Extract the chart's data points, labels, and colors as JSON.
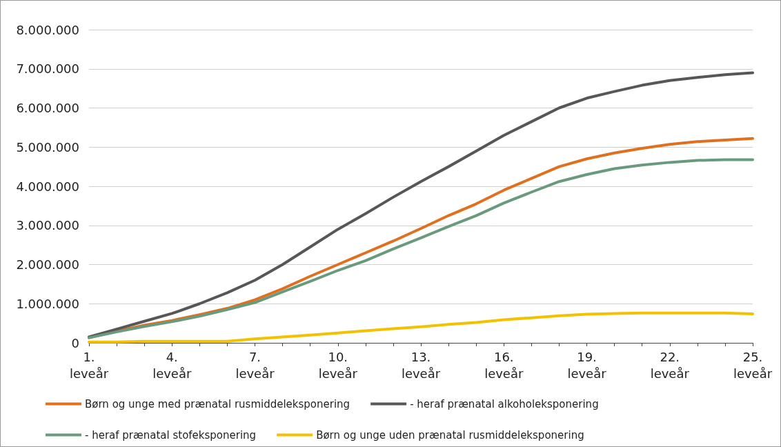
{
  "chart_data": {
    "type": "line",
    "categories": [
      "1. leveår",
      null,
      null,
      "4. leveår",
      null,
      null,
      "7. leveår",
      null,
      null,
      "10. leveår",
      null,
      null,
      "13. leveår",
      null,
      null,
      "16. leveår",
      null,
      null,
      "19. leveår",
      null,
      null,
      "22. leveår",
      null,
      null,
      "25. leveår"
    ],
    "series": [
      {
        "name": "Børn og unge med prænatal rusmiddeleksponering",
        "color": "#e07020",
        "values": [
          130000,
          300000,
          450000,
          570000,
          720000,
          880000,
          1100000,
          1380000,
          1700000,
          2000000,
          2300000,
          2600000,
          2920000,
          3250000,
          3550000,
          3900000,
          4200000,
          4500000,
          4700000,
          4850000,
          4970000,
          5070000,
          5140000,
          5180000,
          5220000
        ]
      },
      {
        "name": "- heraf prænatal alkoholeksponering",
        "color": "#575757",
        "values": [
          150000,
          350000,
          550000,
          750000,
          1000000,
          1280000,
          1600000,
          2000000,
          2450000,
          2900000,
          3300000,
          3720000,
          4120000,
          4500000,
          4900000,
          5300000,
          5650000,
          6000000,
          6250000,
          6420000,
          6580000,
          6700000,
          6780000,
          6850000,
          6900000
        ]
      },
      {
        "name": "- heraf prænatal stofeksponering",
        "color": "#6a9a7e",
        "values": [
          130000,
          280000,
          420000,
          540000,
          680000,
          850000,
          1030000,
          1300000,
          1570000,
          1850000,
          2100000,
          2400000,
          2680000,
          2970000,
          3250000,
          3570000,
          3850000,
          4120000,
          4300000,
          4450000,
          4540000,
          4610000,
          4660000,
          4680000,
          4680000
        ]
      },
      {
        "name": "Børn og unge uden prænatal rusmiddeleksponering",
        "color": "#f2c200",
        "values": [
          20000,
          20000,
          40000,
          40000,
          40000,
          40000,
          100000,
          150000,
          200000,
          250000,
          310000,
          360000,
          410000,
          470000,
          520000,
          590000,
          640000,
          690000,
          730000,
          750000,
          760000,
          760000,
          760000,
          760000,
          740000
        ]
      }
    ],
    "ylim": [
      0,
      8000000
    ],
    "yticks": [
      {
        "value": 0,
        "label": "0"
      },
      {
        "value": 1000000,
        "label": "1.000.000"
      },
      {
        "value": 2000000,
        "label": "2.000.000"
      },
      {
        "value": 3000000,
        "label": "3.000.000"
      },
      {
        "value": 4000000,
        "label": "4.000.000"
      },
      {
        "value": 5000000,
        "label": "5.000.000"
      },
      {
        "value": 6000000,
        "label": "6.000.000"
      },
      {
        "value": 7000000,
        "label": "7.000.000"
      },
      {
        "value": 8000000,
        "label": "8.000.000"
      }
    ],
    "grid": "y",
    "legend": "bottom",
    "marker": "none",
    "line_style": "solid"
  }
}
